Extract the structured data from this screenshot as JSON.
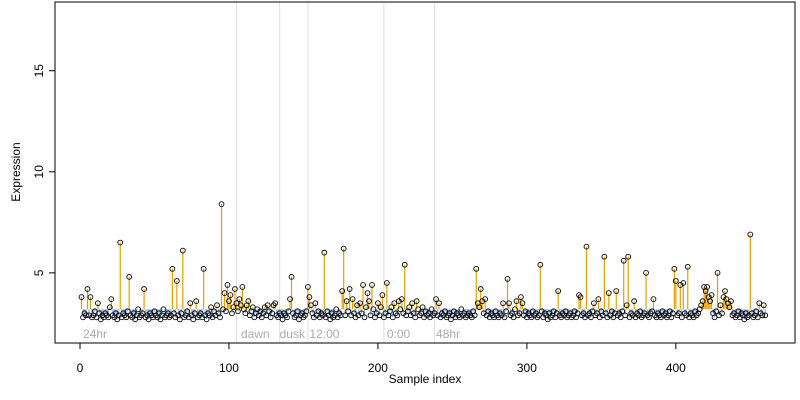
{
  "chart_data": {
    "type": "stem",
    "xlabel": "Sample index",
    "ylabel": "Expression",
    "xlim": [
      -16.8,
      480
    ],
    "ylim": [
      1.53,
      18.4
    ],
    "xticks": [
      0,
      100,
      200,
      300,
      400
    ],
    "yticks": [
      5,
      10,
      15
    ],
    "baseline": 3.2,
    "color_above": "#e69f00",
    "color_below": "#8db3e2",
    "vlines": [
      105,
      134,
      153,
      204,
      238
    ],
    "annotations": [
      {
        "text": "24hr",
        "x": 2
      },
      {
        "text": "dawn",
        "x": 108
      },
      {
        "text": "dusk",
        "x": 134
      },
      {
        "text": "12:00",
        "x": 154
      },
      {
        "text": "0:00",
        "x": 206
      },
      {
        "text": "48hr",
        "x": 239
      }
    ],
    "values": [
      3.8,
      2.8,
      3.0,
      2.9,
      4.2,
      2.9,
      3.8,
      2.8,
      2.9,
      3.1,
      2.8,
      3.5,
      3.0,
      2.7,
      2.9,
      2.8,
      3.0,
      2.9,
      2.8,
      3.3,
      3.7,
      2.9,
      2.8,
      3.0,
      2.7,
      2.9,
      6.5,
      2.8,
      3.0,
      2.9,
      2.8,
      3.1,
      4.8,
      2.9,
      2.8,
      3.0,
      2.7,
      2.9,
      3.2,
      2.8,
      2.9,
      3.0,
      4.2,
      2.8,
      2.9,
      2.7,
      3.0,
      2.9,
      2.8,
      3.1,
      2.9,
      2.8,
      3.0,
      2.7,
      2.9,
      3.2,
      2.8,
      2.9,
      3.0,
      2.8,
      2.9,
      5.2,
      3.0,
      2.8,
      4.6,
      2.9,
      2.7,
      3.0,
      6.1,
      2.8,
      2.9,
      3.1,
      2.8,
      3.5,
      2.9,
      2.7,
      3.0,
      3.6,
      2.8,
      2.9,
      3.0,
      2.8,
      5.2,
      2.9,
      2.7,
      3.0,
      2.9,
      3.3,
      2.8,
      3.1,
      2.9,
      3.4,
      3.0,
      2.8,
      8.4,
      3.2,
      4.0,
      3.1,
      4.4,
      3.6,
      3.9,
      3.0,
      3.3,
      4.2,
      3.5,
      3.1,
      3.7,
      3.4,
      4.3,
      3.2,
      3.0,
      3.4,
      3.6,
      2.9,
      3.1,
      3.3,
      2.8,
      3.0,
      3.2,
      2.9,
      3.1,
      2.8,
      3.0,
      3.3,
      2.9,
      3.4,
      3.1,
      2.8,
      3.0,
      3.4,
      3.5,
      2.9,
      2.8,
      3.0,
      2.9,
      2.7,
      3.0,
      2.9,
      2.8,
      3.1,
      3.7,
      4.8,
      3.0,
      2.8,
      2.9,
      3.1,
      2.7,
      2.9,
      3.0,
      2.8,
      2.9,
      3.1,
      4.3,
      3.8,
      3.4,
      3.0,
      2.8,
      3.5,
      2.9,
      3.1,
      2.8,
      3.0,
      2.9,
      6.0,
      2.8,
      3.1,
      2.9,
      2.7,
      3.0,
      2.8,
      2.9,
      3.2,
      2.8,
      3.0,
      2.9,
      4.1,
      6.2,
      2.9,
      3.6,
      3.1,
      4.2,
      2.9,
      3.7,
      3.0,
      2.8,
      3.4,
      2.9,
      3.5,
      3.0,
      4.4,
      2.8,
      3.3,
      4.0,
      3.6,
      2.9,
      4.4,
      3.2,
      2.8,
      3.0,
      3.5,
      2.9,
      3.3,
      3.9,
      2.8,
      3.0,
      4.5,
      2.9,
      3.1,
      3.3,
      2.8,
      3.5,
      3.0,
      2.9,
      3.6,
      3.2,
      3.7,
      3.0,
      5.4,
      2.9,
      3.1,
      3.3,
      2.9,
      3.5,
      3.0,
      2.8,
      3.6,
      3.2,
      2.9,
      3.0,
      3.3,
      2.8,
      3.1,
      2.9,
      3.0,
      2.8,
      3.2,
      2.9,
      3.0,
      3.7,
      2.9,
      3.5,
      2.8,
      3.0,
      2.9,
      3.1,
      2.8,
      2.9,
      3.0,
      2.7,
      2.9,
      3.1,
      2.8,
      3.0,
      2.9,
      2.8,
      3.2,
      2.9,
      3.0,
      2.8,
      2.9,
      3.0,
      2.9,
      2.8,
      3.1,
      2.9,
      5.2,
      3.5,
      3.3,
      4.2,
      3.6,
      3.0,
      3.7,
      2.9,
      3.1,
      2.8,
      3.0,
      2.9,
      2.8,
      3.1,
      2.9,
      2.8,
      3.0,
      2.9,
      3.5,
      2.8,
      3.1,
      4.7,
      3.5,
      2.9,
      3.0,
      2.8,
      3.2,
      3.6,
      2.9,
      3.0,
      3.8,
      3.5,
      2.9,
      3.1,
      2.8,
      3.0,
      2.9,
      2.8,
      3.1,
      2.9,
      3.0,
      2.8,
      2.9,
      5.4,
      3.1,
      2.8,
      3.0,
      2.9,
      2.7,
      3.0,
      2.8,
      2.9,
      3.1,
      2.8,
      3.0,
      4.1,
      2.9,
      2.8,
      3.0,
      2.9,
      3.1,
      2.8,
      2.9,
      3.0,
      2.8,
      2.9,
      3.1,
      2.8,
      3.0,
      3.9,
      3.8,
      2.9,
      3.0,
      2.8,
      6.3,
      2.9,
      3.0,
      2.8,
      3.1,
      3.5,
      2.9,
      3.0,
      3.7,
      2.8,
      3.1,
      2.9,
      5.8,
      3.0,
      2.8,
      4.0,
      2.9,
      3.1,
      2.8,
      3.0,
      4.1,
      2.9,
      3.0,
      2.8,
      3.1,
      5.6,
      2.9,
      3.4,
      5.8,
      2.8,
      3.0,
      2.9,
      3.6,
      2.8,
      3.0,
      2.9,
      3.1,
      2.8,
      2.9,
      3.0,
      5.0,
      2.9,
      2.8,
      3.0,
      3.1,
      3.7,
      2.9,
      2.8,
      3.0,
      2.9,
      2.8,
      3.1,
      2.9,
      3.0,
      2.8,
      2.9,
      3.1,
      2.8,
      3.0,
      5.2,
      4.6,
      2.9,
      3.0,
      4.4,
      2.8,
      4.5,
      3.0,
      2.9,
      5.3,
      2.8,
      3.0,
      2.9,
      2.8,
      3.1,
      2.9,
      3.0,
      3.2,
      3.4,
      3.6,
      4.3,
      4.1,
      4.3,
      3.8,
      3.6,
      3.9,
      3.0,
      2.8,
      3.1,
      5.0,
      2.9,
      3.4,
      3.0,
      3.8,
      4.1,
      3.7,
      3.5,
      3.3,
      3.6,
      2.9,
      3.0,
      2.8,
      2.9,
      3.1,
      2.8,
      3.0,
      2.9,
      2.7,
      3.0,
      2.8,
      2.9,
      6.9,
      3.0,
      2.8,
      2.9,
      3.1,
      2.8,
      3.5,
      3.0,
      2.9,
      3.4,
      2.9
    ]
  }
}
